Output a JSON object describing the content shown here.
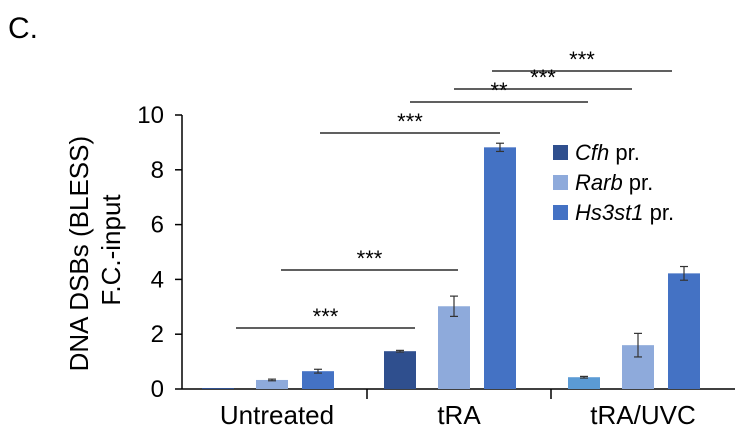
{
  "panel_label": "C.",
  "chart_data": {
    "type": "bar",
    "ylabel_lines": [
      "DNA DSBs (BLESS)",
      "F.C.-input"
    ],
    "ylim": [
      0,
      10
    ],
    "yticks": [
      0,
      2,
      4,
      6,
      8,
      10
    ],
    "categories": [
      "Untreated",
      "tRA",
      "tRA/UVC"
    ],
    "series": [
      {
        "name": "Cfh",
        "suffix": " pr.",
        "color": "#2f4f8e",
        "values": [
          0.0,
          1.38,
          0.43
        ],
        "errors": [
          0.0,
          0.03,
          0.03
        ],
        "bar_colors": [
          "#2f4f8e",
          "#2f4f8e",
          "#5b9bd5"
        ]
      },
      {
        "name": "Rarb",
        "suffix": " pr.",
        "color": "#8eaadb",
        "values": [
          0.33,
          3.02,
          1.6
        ],
        "errors": [
          0.03,
          0.37,
          0.43
        ]
      },
      {
        "name": "Hs3st1",
        "suffix": " pr.",
        "color": "#4472c4",
        "values": [
          0.65,
          8.82,
          4.22
        ],
        "errors": [
          0.07,
          0.15,
          0.25
        ]
      }
    ],
    "legend_position": "right",
    "significance": [
      {
        "label": "***",
        "from": [
          0,
          0
        ],
        "to": [
          1,
          0
        ]
      },
      {
        "label": "***",
        "from": [
          0,
          1
        ],
        "to": [
          1,
          1
        ]
      },
      {
        "label": "***",
        "from": [
          0,
          2
        ],
        "to": [
          1,
          2
        ]
      },
      {
        "label": "**",
        "from": [
          1,
          0
        ],
        "to": [
          2,
          0
        ]
      },
      {
        "label": "***",
        "from": [
          1,
          1
        ],
        "to": [
          2,
          1
        ]
      },
      {
        "label": "***",
        "from": [
          1,
          2
        ],
        "to": [
          2,
          2
        ]
      }
    ]
  }
}
